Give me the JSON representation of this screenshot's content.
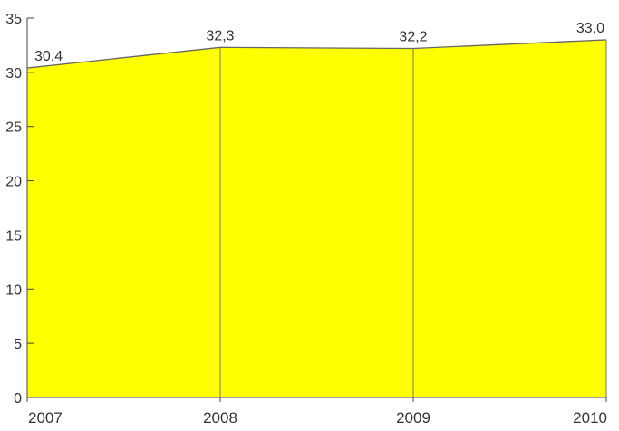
{
  "chart_data": {
    "type": "area",
    "categories": [
      "2007",
      "2008",
      "2009",
      "2010"
    ],
    "series": [
      {
        "values": [
          30.4,
          32.3,
          32.2,
          33.0
        ],
        "data_labels": [
          "30,4",
          "32,3",
          "32,2",
          "33,0"
        ]
      }
    ],
    "ylim": [
      0,
      35
    ],
    "yticks": [
      0,
      5,
      10,
      15,
      20,
      25,
      30,
      35
    ],
    "ytick_labels": [
      "0",
      "5",
      "10",
      "15",
      "20",
      "25",
      "30",
      "35"
    ],
    "grid": false,
    "fill_color": "#ffff00",
    "line_color": "#666666"
  }
}
